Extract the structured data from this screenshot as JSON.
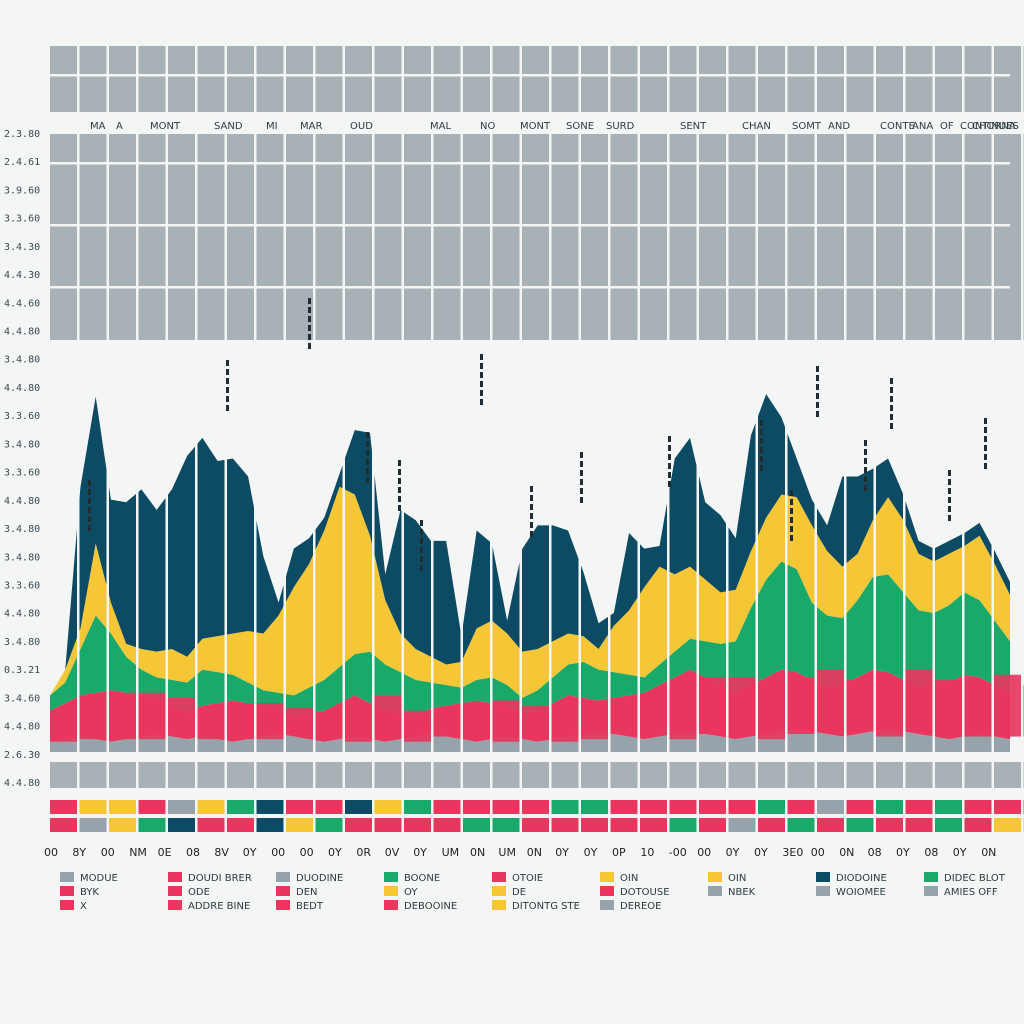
{
  "chart_data": {
    "type": "area",
    "y_tick_labels": [
      "2.3.80",
      "2.4.61",
      "3.9.60",
      "3.3.60",
      "3.4.30",
      "4.4.30",
      "4.4.60",
      "4.4.80",
      "3.4.80",
      "4.4.80",
      "3.3.60",
      "3.4.80",
      "3.3.60",
      "4.4.80",
      "3.4.80",
      "3.4.80",
      "3.3.60",
      "4.4.80",
      "3.4.80",
      "0.3.21",
      "3.4.60",
      "4.4.80",
      "2.6.30",
      "4.4.80"
    ],
    "top_labels": [
      "MA",
      "A",
      "MONT",
      "SAND",
      "MI",
      "MAR",
      "OUD",
      "MAL",
      "NO",
      "MONT",
      "SONE",
      "SURD",
      "SENT",
      "CHAN",
      "SOMT",
      "AND",
      "CONTE",
      "ANA",
      "OF",
      "CONTINUES",
      "CHORNA"
    ],
    "x_tick_labels": [
      "00",
      "8Y",
      "00",
      "NM",
      "0E",
      "08",
      "8V",
      "0Y",
      "00",
      "00",
      "0Y",
      "0R",
      "0V",
      "0Y",
      "UM",
      "0N",
      "UM",
      "0N",
      "0Y",
      "0Y",
      "0P",
      "10",
      "-00",
      "00",
      "0Y",
      "0Y",
      "3E0",
      "00",
      "0N",
      "08",
      "0Y",
      "08",
      "0Y",
      "0N"
    ],
    "series": [
      {
        "name": "dark-teal",
        "values": [
          0,
          0,
          55,
          57,
          40,
          55,
          62,
          55,
          62,
          78,
          78,
          68,
          68,
          60,
          30,
          5,
          15,
          10,
          5,
          5,
          25,
          40,
          10,
          48,
          50,
          45,
          48,
          10,
          38,
          30,
          5,
          40,
          48,
          45,
          40,
          25,
          10,
          5,
          30,
          15,
          8,
          45,
          50,
          30,
          30,
          20,
          45,
          48,
          30,
          15,
          10,
          10,
          35,
          30,
          20,
          15,
          10,
          5,
          5,
          5,
          5,
          5,
          5,
          5
        ]
      },
      {
        "name": "yellow",
        "values": [
          0,
          5,
          8,
          28,
          12,
          5,
          8,
          10,
          12,
          10,
          12,
          14,
          16,
          20,
          22,
          30,
          42,
          48,
          58,
          70,
          62,
          45,
          25,
          15,
          12,
          10,
          8,
          10,
          20,
          22,
          20,
          18,
          16,
          14,
          12,
          10,
          8,
          18,
          25,
          35,
          38,
          30,
          28,
          24,
          20,
          20,
          22,
          24,
          26,
          28,
          30,
          25,
          20,
          18,
          22,
          30,
          28,
          22,
          20,
          20,
          18,
          25,
          22,
          18
        ]
      },
      {
        "name": "green",
        "values": [
          6,
          8,
          18,
          30,
          22,
          14,
          10,
          8,
          10,
          12,
          14,
          12,
          10,
          8,
          6,
          6,
          8,
          10,
          12,
          14,
          16,
          20,
          18,
          16,
          14,
          10,
          8,
          6,
          8,
          10,
          8,
          6,
          8,
          10,
          12,
          14,
          12,
          10,
          8,
          6,
          8,
          10,
          12,
          14,
          16,
          20,
          30,
          38,
          42,
          40,
          30,
          28,
          26,
          30,
          36,
          38,
          34,
          30,
          28,
          30,
          32,
          30,
          25,
          20
        ]
      },
      {
        "name": "crimson",
        "values": [
          12,
          14,
          16,
          18,
          20,
          18,
          16,
          14,
          12,
          10,
          12,
          14,
          16,
          14,
          12,
          10,
          8,
          10,
          12,
          14,
          16,
          14,
          12,
          10,
          8,
          10,
          12,
          14,
          16,
          14,
          12,
          10,
          12,
          14,
          16,
          14,
          12,
          14,
          16,
          18,
          20,
          22,
          24,
          22,
          20,
          18,
          20,
          22,
          24,
          22,
          20,
          18,
          20,
          22,
          24,
          22,
          20,
          18,
          20,
          22,
          24,
          22,
          20,
          18
        ]
      },
      {
        "name": "slate",
        "values": [
          4,
          5,
          6,
          5,
          4,
          5,
          6,
          7,
          6,
          5,
          6,
          5,
          4,
          5,
          6,
          7,
          6,
          5,
          4,
          5,
          6,
          5,
          4,
          5,
          6,
          7,
          6,
          5,
          4,
          5,
          6,
          5,
          4,
          5,
          6,
          7,
          8,
          7,
          6,
          5,
          6,
          7,
          8,
          7,
          6,
          5,
          6,
          7,
          8,
          9,
          8,
          7,
          6,
          7,
          8,
          9,
          8,
          7,
          6,
          5,
          6,
          7,
          6,
          5
        ]
      }
    ],
    "colors": {
      "dark-teal": "#0d4a63",
      "yellow": "#f5c737",
      "green": "#19a96a",
      "crimson": "#e8365f",
      "slate": "#97a3aa",
      "grid": "#f3f6f5",
      "band": "#a7b1b6"
    },
    "legend": {
      "placement": "bottom",
      "items": [
        {
          "label": "MODUE",
          "color": "#97a3aa"
        },
        {
          "label": "DOUDI BRER",
          "color": "#e8365f"
        },
        {
          "label": "DUODINE",
          "color": "#97a3aa"
        },
        {
          "label": "BOONE",
          "color": "#19a96a"
        },
        {
          "label": "OTOIE",
          "color": "#e8365f"
        },
        {
          "label": "OIN",
          "color": "#f5c737"
        },
        {
          "label": "OIN",
          "color": "#f5c737"
        },
        {
          "label": "DIODOINE",
          "color": "#0d4a63"
        },
        {
          "label": "DIDEC BLOT",
          "color": "#19a96a"
        },
        {
          "label": "BYK",
          "color": "#e8365f"
        },
        {
          "label": "ODE",
          "color": "#e8365f"
        },
        {
          "label": "DEN",
          "color": "#e8365f"
        },
        {
          "label": "OY",
          "color": "#f5c737"
        },
        {
          "label": "DE",
          "color": "#f5c737"
        },
        {
          "label": "DOTOUSE",
          "color": "#e8365f"
        },
        {
          "label": "NBEK",
          "color": "#97a3aa"
        },
        {
          "label": "WOIOMEE",
          "color": "#97a3aa"
        },
        {
          "label": "AMIES OFF",
          "color": "#97a3aa"
        },
        {
          "label": "X",
          "color": "#e8365f"
        },
        {
          "label": "ADDRE BINE",
          "color": "#e8365f"
        },
        {
          "label": "BEDT",
          "color": "#e8365f"
        },
        {
          "label": "DEBOOINE",
          "color": "#e8365f"
        },
        {
          "label": "DITONTG STE",
          "color": "#f5c737"
        },
        {
          "label": "DEREOE",
          "color": "#97a3aa"
        }
      ]
    },
    "grid": true
  }
}
